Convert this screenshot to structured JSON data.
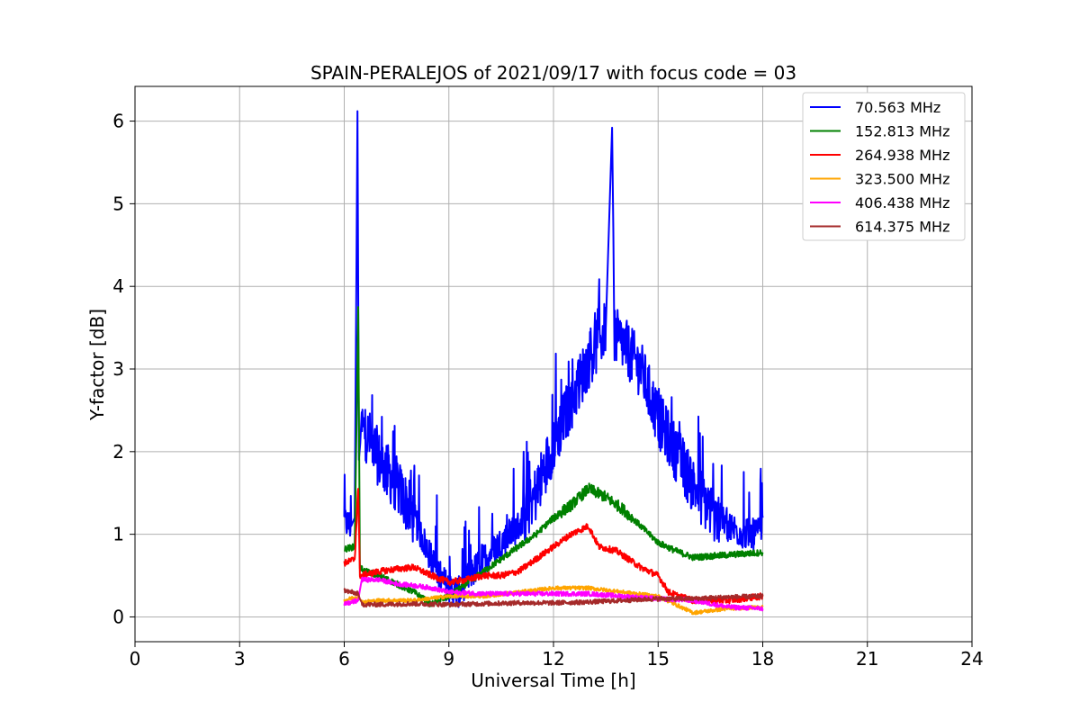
{
  "chart_data": {
    "type": "line",
    "title": "SPAIN-PERALEJOS of 2021/09/17 with focus code = 03",
    "xlabel": "Universal Time [h]",
    "ylabel": "Y-factor [dB]",
    "xlim": [
      0,
      24
    ],
    "ylim": [
      -0.3,
      6.42
    ],
    "xticks": [
      0,
      3,
      6,
      9,
      12,
      15,
      18,
      21,
      24
    ],
    "yticks": [
      0,
      1,
      2,
      3,
      4,
      5,
      6
    ],
    "grid": true,
    "legend_position": "top-right",
    "series": [
      {
        "name": " 70.563 MHz",
        "color": "#0000ff",
        "noise": 0.35,
        "points": [
          [
            6.0,
            1.15
          ],
          [
            6.2,
            1.1
          ],
          [
            6.3,
            1.2
          ],
          [
            6.38,
            6.12
          ],
          [
            6.42,
            1.9
          ],
          [
            6.5,
            2.3
          ],
          [
            6.8,
            2.1
          ],
          [
            7.0,
            1.9
          ],
          [
            7.5,
            1.6
          ],
          [
            8.0,
            1.2
          ],
          [
            8.5,
            0.7
          ],
          [
            8.8,
            0.45
          ],
          [
            9.0,
            0.35
          ],
          [
            9.3,
            0.3
          ],
          [
            9.6,
            0.5
          ],
          [
            10.0,
            0.7
          ],
          [
            10.5,
            0.9
          ],
          [
            11.0,
            1.1
          ],
          [
            11.5,
            1.5
          ],
          [
            12.0,
            2.1
          ],
          [
            12.5,
            2.6
          ],
          [
            13.0,
            3.1
          ],
          [
            13.5,
            3.5
          ],
          [
            13.68,
            5.92
          ],
          [
            13.75,
            3.4
          ],
          [
            14.0,
            3.3
          ],
          [
            14.5,
            3.0
          ],
          [
            15.0,
            2.4
          ],
          [
            15.5,
            2.0
          ],
          [
            16.0,
            1.6
          ],
          [
            16.5,
            1.3
          ],
          [
            17.0,
            1.1
          ],
          [
            17.5,
            1.0
          ],
          [
            17.9,
            1.0
          ],
          [
            18.0,
            1.2
          ]
        ]
      },
      {
        "name": "152.813 MHz",
        "color": "#008000",
        "noise": 0.07,
        "points": [
          [
            6.0,
            0.82
          ],
          [
            6.3,
            0.85
          ],
          [
            6.4,
            3.75
          ],
          [
            6.45,
            0.6
          ],
          [
            6.6,
            0.55
          ],
          [
            7.0,
            0.5
          ],
          [
            8.0,
            0.3
          ],
          [
            8.5,
            0.15
          ],
          [
            9.0,
            0.25
          ],
          [
            9.5,
            0.4
          ],
          [
            10.0,
            0.55
          ],
          [
            10.5,
            0.7
          ],
          [
            11.0,
            0.85
          ],
          [
            11.5,
            1.0
          ],
          [
            12.0,
            1.2
          ],
          [
            12.5,
            1.35
          ],
          [
            13.0,
            1.55
          ],
          [
            13.5,
            1.45
          ],
          [
            14.0,
            1.3
          ],
          [
            14.5,
            1.1
          ],
          [
            15.0,
            0.9
          ],
          [
            15.5,
            0.8
          ],
          [
            16.0,
            0.72
          ],
          [
            17.0,
            0.75
          ],
          [
            18.0,
            0.78
          ]
        ]
      },
      {
        "name": "264.938 MHz",
        "color": "#ff0000",
        "noise": 0.07,
        "points": [
          [
            6.0,
            0.65
          ],
          [
            6.3,
            0.7
          ],
          [
            6.4,
            1.55
          ],
          [
            6.45,
            0.5
          ],
          [
            7.0,
            0.55
          ],
          [
            7.5,
            0.58
          ],
          [
            8.0,
            0.6
          ],
          [
            8.5,
            0.5
          ],
          [
            9.0,
            0.42
          ],
          [
            9.5,
            0.45
          ],
          [
            10.0,
            0.5
          ],
          [
            10.5,
            0.5
          ],
          [
            11.0,
            0.55
          ],
          [
            11.5,
            0.7
          ],
          [
            12.0,
            0.85
          ],
          [
            12.5,
            1.0
          ],
          [
            13.0,
            1.1
          ],
          [
            13.3,
            0.85
          ],
          [
            13.8,
            0.8
          ],
          [
            14.5,
            0.6
          ],
          [
            15.0,
            0.5
          ],
          [
            15.3,
            0.3
          ],
          [
            15.6,
            0.25
          ],
          [
            16.0,
            0.2
          ],
          [
            17.0,
            0.2
          ],
          [
            18.0,
            0.25
          ]
        ]
      },
      {
        "name": "323.500 MHz",
        "color": "#ffa500",
        "noise": 0.04,
        "points": [
          [
            6.0,
            0.2
          ],
          [
            6.4,
            0.25
          ],
          [
            6.5,
            0.18
          ],
          [
            7.0,
            0.2
          ],
          [
            8.0,
            0.2
          ],
          [
            9.0,
            0.25
          ],
          [
            10.0,
            0.25
          ],
          [
            11.0,
            0.3
          ],
          [
            12.0,
            0.35
          ],
          [
            13.0,
            0.35
          ],
          [
            14.0,
            0.3
          ],
          [
            15.0,
            0.25
          ],
          [
            16.0,
            0.05
          ],
          [
            17.0,
            0.1
          ],
          [
            18.0,
            0.12
          ]
        ]
      },
      {
        "name": "406.438 MHz",
        "color": "#ff00ff",
        "noise": 0.05,
        "points": [
          [
            6.0,
            0.15
          ],
          [
            6.4,
            0.2
          ],
          [
            6.5,
            0.45
          ],
          [
            7.0,
            0.45
          ],
          [
            7.5,
            0.4
          ],
          [
            8.0,
            0.38
          ],
          [
            8.5,
            0.35
          ],
          [
            9.0,
            0.3
          ],
          [
            10.0,
            0.28
          ],
          [
            11.0,
            0.28
          ],
          [
            12.0,
            0.28
          ],
          [
            13.0,
            0.28
          ],
          [
            14.0,
            0.25
          ],
          [
            15.0,
            0.22
          ],
          [
            16.0,
            0.2
          ],
          [
            17.0,
            0.12
          ],
          [
            18.0,
            0.1
          ]
        ]
      },
      {
        "name": "614.375 MHz",
        "color": "#a52a2a",
        "noise": 0.05,
        "points": [
          [
            6.0,
            0.32
          ],
          [
            6.4,
            0.28
          ],
          [
            6.5,
            0.15
          ],
          [
            7.0,
            0.15
          ],
          [
            8.0,
            0.16
          ],
          [
            9.0,
            0.15
          ],
          [
            10.0,
            0.16
          ],
          [
            11.0,
            0.17
          ],
          [
            12.0,
            0.17
          ],
          [
            13.0,
            0.18
          ],
          [
            14.0,
            0.2
          ],
          [
            15.0,
            0.22
          ],
          [
            16.0,
            0.22
          ],
          [
            17.0,
            0.24
          ],
          [
            18.0,
            0.25
          ]
        ]
      }
    ]
  }
}
